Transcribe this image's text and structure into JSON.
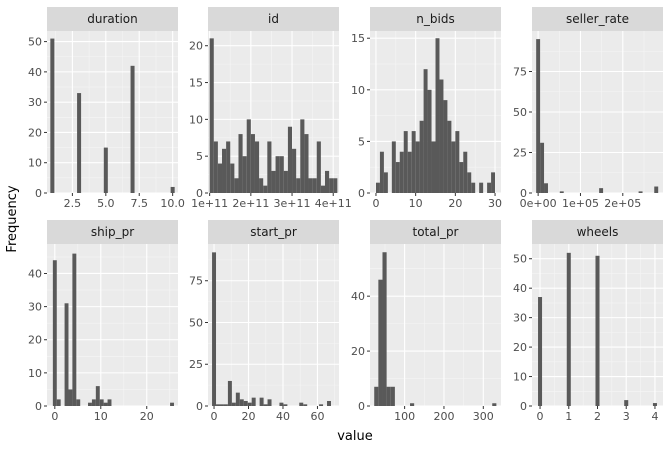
{
  "chart_data": {
    "type": "bar",
    "xlabel": "value",
    "ylabel": "Frequency",
    "colors": {
      "bar": "#595959",
      "panel": "#ebebeb",
      "strip": "#d9d9d9",
      "grid_major": "#ffffff"
    },
    "grid": true,
    "layout": "facet_wrap 2 rows x 4 cols, free scales",
    "panels": [
      {
        "title": "duration",
        "xlim": [
          0.6,
          10.4
        ],
        "ylim": [
          0,
          53.5
        ],
        "xticks": [
          2.5,
          5.0,
          7.5,
          10.0
        ],
        "xtick_labels": [
          "2.5",
          "5.0",
          "7.5",
          "10.0"
        ],
        "yticks": [
          0,
          10,
          20,
          30,
          40,
          50
        ],
        "ytick_labels": [
          "0",
          "10",
          "20",
          "30",
          "40",
          "50"
        ],
        "bin_width": 0.3,
        "bins": [
          {
            "x": 1.0,
            "count": 51
          },
          {
            "x": 3.0,
            "count": 33
          },
          {
            "x": 5.0,
            "count": 15
          },
          {
            "x": 7.0,
            "count": 42
          },
          {
            "x": 10.0,
            "count": 2
          }
        ]
      },
      {
        "title": "id",
        "xlim": [
          96000000000,
          414000000000
        ],
        "ylim": [
          0,
          22
        ],
        "xticks": [
          100000000000,
          200000000000,
          300000000000,
          400000000000
        ],
        "xtick_labels": [
          "1e+11",
          "2e+11",
          "3e+11",
          "4e+11"
        ],
        "yticks": [
          0,
          5,
          10,
          15,
          20
        ],
        "ytick_labels": [
          "0",
          "5",
          "10",
          "15",
          "20"
        ],
        "bin_width": 10000000000,
        "counts": [
          21,
          7,
          4,
          6,
          7,
          4,
          2,
          8,
          5,
          10,
          8,
          7,
          2,
          1,
          7,
          3,
          5,
          5,
          3,
          9,
          6,
          2,
          10,
          8,
          2,
          2,
          7,
          1,
          3,
          2,
          2
        ]
      },
      {
        "title": "n_bids",
        "xlim": [
          -1.5,
          31.5
        ],
        "ylim": [
          0,
          15.7
        ],
        "xticks": [
          0,
          10,
          20,
          30
        ],
        "xtick_labels": [
          "0",
          "10",
          "20",
          "30"
        ],
        "yticks": [
          0,
          5,
          10,
          15
        ],
        "ytick_labels": [
          "0",
          "5",
          "10",
          "15"
        ],
        "bin_width": 1,
        "counts": [
          1,
          4,
          2,
          0,
          5,
          3,
          4,
          6,
          4,
          6,
          5,
          7,
          12,
          10,
          5,
          15,
          11,
          9,
          7,
          5,
          6,
          3,
          4,
          2,
          1,
          0,
          1,
          0,
          1,
          2
        ]
      },
      {
        "title": "seller_rate",
        "xlim": [
          -14500,
          295000
        ],
        "ylim": [
          0,
          100
        ],
        "xticks": [
          0,
          100000,
          200000
        ],
        "xtick_labels": [
          "0e+00",
          "1e+05",
          "2e+05"
        ],
        "yticks": [
          0,
          25,
          50,
          75
        ],
        "ytick_labels": [
          "0",
          "25",
          "50",
          "75"
        ],
        "bin_width": 9300,
        "bins": [
          {
            "x": 0,
            "count": 95
          },
          {
            "x": 9300,
            "count": 31
          },
          {
            "x": 18600,
            "count": 6
          },
          {
            "x": 55800,
            "count": 1
          },
          {
            "x": 148800,
            "count": 3
          },
          {
            "x": 242000,
            "count": 1
          },
          {
            "x": 279000,
            "count": 4
          }
        ]
      },
      {
        "title": "ship_pr",
        "xlim": [
          -1.7,
          26.8
        ],
        "ylim": [
          0,
          48.9
        ],
        "xticks": [
          0,
          10,
          20
        ],
        "xtick_labels": [
          "0",
          "10",
          "20"
        ],
        "yticks": [
          0,
          10,
          20,
          30,
          40
        ],
        "ytick_labels": [
          "0",
          "10",
          "20",
          "30",
          "40"
        ],
        "bin_width": 0.85,
        "bins": [
          {
            "x": 0.0,
            "count": 44
          },
          {
            "x": 0.85,
            "count": 2
          },
          {
            "x": 1.7,
            "count": 0
          },
          {
            "x": 2.55,
            "count": 31
          },
          {
            "x": 3.4,
            "count": 5
          },
          {
            "x": 4.25,
            "count": 46
          },
          {
            "x": 5.1,
            "count": 2
          },
          {
            "x": 5.95,
            "count": 0
          },
          {
            "x": 6.8,
            "count": 0
          },
          {
            "x": 7.65,
            "count": 1
          },
          {
            "x": 8.5,
            "count": 2
          },
          {
            "x": 9.35,
            "count": 6
          },
          {
            "x": 10.2,
            "count": 2
          },
          {
            "x": 11.05,
            "count": 1
          },
          {
            "x": 11.9,
            "count": 2
          },
          {
            "x": 25.5,
            "count": 1
          }
        ]
      },
      {
        "title": "start_pr",
        "xlim": [
          -3.5,
          72.5
        ],
        "ylim": [
          0,
          97
        ],
        "xticks": [
          0,
          20,
          40,
          60
        ],
        "xtick_labels": [
          "0",
          "20",
          "40",
          "60"
        ],
        "yticks": [
          0,
          25,
          50,
          75
        ],
        "ytick_labels": [
          "0",
          "25",
          "50",
          "75"
        ],
        "bin_width": 2.3,
        "bins": [
          {
            "x": 0.0,
            "count": 92
          },
          {
            "x": 2.3,
            "count": 1
          },
          {
            "x": 4.6,
            "count": 1
          },
          {
            "x": 6.9,
            "count": 1
          },
          {
            "x": 9.2,
            "count": 15
          },
          {
            "x": 11.5,
            "count": 2
          },
          {
            "x": 13.8,
            "count": 8
          },
          {
            "x": 16.1,
            "count": 4
          },
          {
            "x": 18.4,
            "count": 3
          },
          {
            "x": 20.7,
            "count": 2
          },
          {
            "x": 23.0,
            "count": 5
          },
          {
            "x": 27.6,
            "count": 5
          },
          {
            "x": 29.9,
            "count": 1
          },
          {
            "x": 32.2,
            "count": 4
          },
          {
            "x": 39.1,
            "count": 2
          },
          {
            "x": 41.4,
            "count": 1
          },
          {
            "x": 50.6,
            "count": 2
          },
          {
            "x": 52.9,
            "count": 1
          },
          {
            "x": 62.1,
            "count": 1
          },
          {
            "x": 66.7,
            "count": 3
          }
        ]
      },
      {
        "title": "total_pr",
        "xlim": [
          12,
          345
        ],
        "ylim": [
          0,
          59
        ],
        "xticks": [
          100,
          200,
          300
        ],
        "xtick_labels": [
          "100",
          "200",
          "300"
        ],
        "yticks": [
          0,
          20,
          40
        ],
        "ytick_labels": [
          "0",
          "20",
          "40"
        ],
        "bin_width": 10.5,
        "bins": [
          {
            "x": 28.0,
            "count": 7
          },
          {
            "x": 38.5,
            "count": 46
          },
          {
            "x": 49.0,
            "count": 56
          },
          {
            "x": 59.5,
            "count": 7
          },
          {
            "x": 70.0,
            "count": 7
          },
          {
            "x": 119.0,
            "count": 1
          },
          {
            "x": 328.0,
            "count": 1
          }
        ]
      },
      {
        "title": "wheels",
        "xlim": [
          -0.28,
          4.28
        ],
        "ylim": [
          0,
          55
        ],
        "xticks": [
          0,
          1,
          2,
          3,
          4
        ],
        "xtick_labels": [
          "0",
          "1",
          "2",
          "3",
          "4"
        ],
        "yticks": [
          0,
          10,
          20,
          30,
          40,
          50
        ],
        "ytick_labels": [
          "0",
          "10",
          "20",
          "30",
          "40",
          "50"
        ],
        "bin_width": 0.14,
        "bins": [
          {
            "x": 0,
            "count": 37
          },
          {
            "x": 1,
            "count": 52
          },
          {
            "x": 2,
            "count": 51
          },
          {
            "x": 3,
            "count": 2
          },
          {
            "x": 4,
            "count": 1
          }
        ]
      }
    ]
  }
}
